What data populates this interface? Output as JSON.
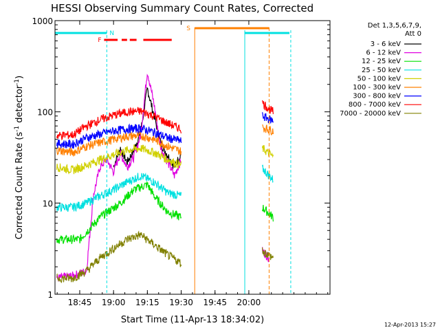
{
  "chart_data": {
    "type": "line",
    "title": "HESSI Observing Summary Count Rates, Corrected",
    "xlabel": "Start Time (11-Apr-13 18:34:02)",
    "ylabel": "Corrected Count Rate (s⁻¹ detector⁻¹)",
    "ylabel_parts": [
      "Corrected Count Rate (s",
      "-1",
      " detector",
      "-1",
      ")"
    ],
    "yscale": "log",
    "ylim": [
      1,
      1000
    ],
    "xlim": [
      18.5672,
      20.6
    ],
    "x_ticks": [
      {
        "t": 18.75,
        "label": "18:45"
      },
      {
        "t": 19.0,
        "label": "19:00"
      },
      {
        "t": 19.25,
        "label": "19:15"
      },
      {
        "t": 19.5,
        "label": "19:30"
      },
      {
        "t": 19.75,
        "label": "19:45"
      },
      {
        "t": 20.0,
        "label": "20:00"
      }
    ],
    "y_ticks": [
      {
        "v": 1,
        "label": "1"
      },
      {
        "v": 10,
        "label": "10"
      },
      {
        "v": 100,
        "label": "100"
      },
      {
        "v": 1000,
        "label": "1000"
      }
    ],
    "legend_header": [
      "Det 1,3,5,6,7,9,",
      "Att 0"
    ],
    "legend_position": "right",
    "timestamp": "12-Apr-2013 15:27",
    "series": [
      {
        "name": "3 - 6 keV",
        "color": "#000000",
        "points": [
          [
            19.0,
            25
          ],
          [
            19.05,
            40
          ],
          [
            19.1,
            28
          ],
          [
            19.15,
            38
          ],
          [
            19.2,
            60
          ],
          [
            19.25,
            180
          ],
          [
            19.3,
            90
          ],
          [
            19.35,
            45
          ],
          [
            19.45,
            25
          ],
          [
            19.5,
            35
          ]
        ]
      },
      {
        "name": "6 - 12 keV",
        "color": "#e000e0",
        "points": [
          [
            18.58,
            1.5
          ],
          [
            18.7,
            1.6
          ],
          [
            18.8,
            1.8
          ],
          [
            18.85,
            12
          ],
          [
            18.9,
            25
          ],
          [
            18.95,
            30
          ],
          [
            19.0,
            22
          ],
          [
            19.05,
            35
          ],
          [
            19.1,
            25
          ],
          [
            19.15,
            32
          ],
          [
            19.2,
            55
          ],
          [
            19.25,
            280
          ],
          [
            19.3,
            120
          ],
          [
            19.35,
            40
          ],
          [
            19.45,
            20
          ],
          [
            19.5,
            30
          ],
          [
            20.1,
            3
          ],
          [
            20.15,
            2.5
          ]
        ]
      },
      {
        "name": "12 - 25 keV",
        "color": "#00e000",
        "points": [
          [
            18.58,
            4
          ],
          [
            18.75,
            4
          ],
          [
            18.9,
            7
          ],
          [
            19.05,
            10
          ],
          [
            19.15,
            14
          ],
          [
            19.25,
            16
          ],
          [
            19.3,
            12
          ],
          [
            19.4,
            8
          ],
          [
            19.5,
            7
          ],
          [
            20.1,
            9
          ],
          [
            20.18,
            7
          ]
        ]
      },
      {
        "name": "25 - 50 keV",
        "color": "#00e0e0",
        "points": [
          [
            18.58,
            9
          ],
          [
            18.7,
            9
          ],
          [
            18.8,
            10
          ],
          [
            18.9,
            12
          ],
          [
            19.0,
            14
          ],
          [
            19.1,
            17
          ],
          [
            19.2,
            20
          ],
          [
            19.3,
            17
          ],
          [
            19.4,
            13
          ],
          [
            19.5,
            12
          ],
          [
            20.1,
            24
          ],
          [
            20.18,
            18
          ]
        ]
      },
      {
        "name": "50 - 100 keV",
        "color": "#d0d000",
        "points": [
          [
            18.58,
            25
          ],
          [
            18.7,
            23
          ],
          [
            18.8,
            26
          ],
          [
            18.9,
            30
          ],
          [
            19.0,
            34
          ],
          [
            19.1,
            38
          ],
          [
            19.2,
            40
          ],
          [
            19.3,
            36
          ],
          [
            19.4,
            30
          ],
          [
            19.5,
            26
          ],
          [
            20.1,
            40
          ],
          [
            20.18,
            32
          ]
        ]
      },
      {
        "name": "100 - 300 keV",
        "color": "#ff8000",
        "points": [
          [
            18.58,
            38
          ],
          [
            18.7,
            36
          ],
          [
            18.8,
            42
          ],
          [
            18.9,
            46
          ],
          [
            19.0,
            50
          ],
          [
            19.1,
            54
          ],
          [
            19.2,
            55
          ],
          [
            19.3,
            50
          ],
          [
            19.4,
            42
          ],
          [
            19.5,
            37
          ],
          [
            20.1,
            68
          ],
          [
            20.18,
            62
          ]
        ]
      },
      {
        "name": "300 - 800 keV",
        "color": "#0000ff",
        "points": [
          [
            18.58,
            45
          ],
          [
            18.7,
            44
          ],
          [
            18.8,
            52
          ],
          [
            18.9,
            57
          ],
          [
            19.0,
            62
          ],
          [
            19.1,
            65
          ],
          [
            19.2,
            66
          ],
          [
            19.3,
            60
          ],
          [
            19.4,
            52
          ],
          [
            19.5,
            48
          ],
          [
            20.1,
            90
          ],
          [
            20.18,
            80
          ]
        ]
      },
      {
        "name": "800 - 7000 keV",
        "color": "#ff0000",
        "points": [
          [
            18.58,
            55
          ],
          [
            18.7,
            56
          ],
          [
            18.8,
            70
          ],
          [
            18.9,
            82
          ],
          [
            19.0,
            92
          ],
          [
            19.1,
            100
          ],
          [
            19.2,
            102
          ],
          [
            19.3,
            90
          ],
          [
            19.4,
            75
          ],
          [
            19.5,
            65
          ],
          [
            20.1,
            125
          ],
          [
            20.18,
            100
          ]
        ]
      },
      {
        "name": "7000 - 20000 keV",
        "color": "#808000",
        "points": [
          [
            18.58,
            1.5
          ],
          [
            18.7,
            1.5
          ],
          [
            18.8,
            1.8
          ],
          [
            18.9,
            2.5
          ],
          [
            19.0,
            3.2
          ],
          [
            19.1,
            4
          ],
          [
            19.2,
            4.5
          ],
          [
            19.3,
            3.5
          ],
          [
            19.4,
            2.7
          ],
          [
            19.5,
            2.2
          ],
          [
            20.1,
            3
          ],
          [
            20.18,
            2.5
          ]
        ]
      }
    ],
    "flags": {
      "saa_label": "N",
      "flare_label": "F",
      "sun_label": "S",
      "saa_segments": [
        [
          18.5672,
          18.95
        ],
        [
          19.97,
          20.3
        ]
      ],
      "flare_segments": [
        [
          18.93,
          19.03
        ],
        [
          19.06,
          19.1
        ],
        [
          19.12,
          19.17
        ],
        [
          19.22,
          19.43
        ]
      ],
      "sun_segments": [
        [
          19.6,
          20.15
        ]
      ],
      "cyan_lines": [
        18.95,
        19.97,
        20.31
      ],
      "orange_lines": [
        19.6,
        20.15
      ]
    }
  }
}
